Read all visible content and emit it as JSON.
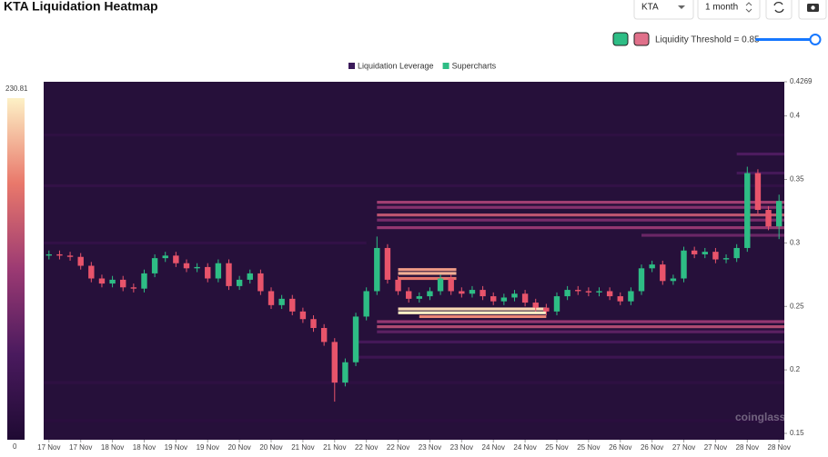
{
  "header": {
    "title": "KTA Liquidation Heatmap",
    "symbol": "KTA",
    "interval": "1 month",
    "threshold_label": "Liquidity Threshold = 0.85"
  },
  "chart_data": {
    "type": "candlestick",
    "legend": [
      "Liquidation Leverage",
      "Supercharts"
    ],
    "legend_colors": [
      "#3b1a5a",
      "#2ebd85"
    ],
    "watermark": "coinglass",
    "up_color": "#2ebd85",
    "down_color": "#e8546b",
    "xlim": [
      -0.5,
      69.5
    ],
    "xticks": [
      {
        "value": 0,
        "label": "17 Nov"
      },
      {
        "value": 3,
        "label": "17 Nov"
      },
      {
        "value": 6,
        "label": "18 Nov"
      },
      {
        "value": 9,
        "label": "18 Nov"
      },
      {
        "value": 12,
        "label": "19 Nov"
      },
      {
        "value": 15,
        "label": "19 Nov"
      },
      {
        "value": 18,
        "label": "20 Nov"
      },
      {
        "value": 21,
        "label": "20 Nov"
      },
      {
        "value": 24,
        "label": "21 Nov"
      },
      {
        "value": 27,
        "label": "21 Nov"
      },
      {
        "value": 30,
        "label": "22 Nov"
      },
      {
        "value": 33,
        "label": "22 Nov"
      },
      {
        "value": 36,
        "label": "23 Nov"
      },
      {
        "value": 39,
        "label": "23 Nov"
      },
      {
        "value": 42,
        "label": "24 Nov"
      },
      {
        "value": 45,
        "label": "24 Nov"
      },
      {
        "value": 48,
        "label": "25 Nov"
      },
      {
        "value": 51,
        "label": "25 Nov"
      },
      {
        "value": 54,
        "label": "26 Nov"
      },
      {
        "value": 57,
        "label": "26 Nov"
      },
      {
        "value": 60,
        "label": "27 Nov"
      },
      {
        "value": 63,
        "label": "27 Nov"
      },
      {
        "value": 66,
        "label": "28 Nov"
      },
      {
        "value": 69,
        "label": "28 Nov"
      }
    ],
    "ylim": [
      0.145,
      0.4269
    ],
    "yticks": [
      0.4269,
      0.4,
      0.35,
      0.3,
      0.25,
      0.2,
      0.15
    ],
    "colorbar": {
      "range": [
        0,
        230.81
      ]
    },
    "x": [
      0,
      1,
      2,
      3,
      4,
      5,
      6,
      7,
      8,
      9,
      10,
      11,
      12,
      13,
      14,
      15,
      16,
      17,
      18,
      19,
      20,
      21,
      22,
      23,
      24,
      25,
      26,
      27,
      28,
      29,
      30,
      31,
      32,
      33,
      34,
      35,
      36,
      37,
      38,
      39,
      40,
      41,
      42,
      43,
      44,
      45,
      46,
      47,
      48,
      49,
      50,
      51,
      52,
      53,
      54,
      55,
      56,
      57,
      58,
      59,
      60,
      61,
      62,
      63,
      64,
      65,
      66,
      67,
      68,
      69
    ],
    "open": [
      0.29,
      0.291,
      0.29,
      0.289,
      0.282,
      0.272,
      0.268,
      0.271,
      0.265,
      0.264,
      0.276,
      0.288,
      0.29,
      0.284,
      0.28,
      0.281,
      0.272,
      0.284,
      0.266,
      0.271,
      0.276,
      0.262,
      0.251,
      0.256,
      0.246,
      0.24,
      0.233,
      0.222,
      0.19,
      0.206,
      0.242,
      0.262,
      0.296,
      0.271,
      0.262,
      0.256,
      0.258,
      0.262,
      0.272,
      0.262,
      0.26,
      0.263,
      0.258,
      0.254,
      0.257,
      0.26,
      0.253,
      0.249,
      0.246,
      0.258,
      0.263,
      0.262,
      0.261,
      0.262,
      0.258,
      0.254,
      0.262,
      0.28,
      0.283,
      0.27,
      0.272,
      0.294,
      0.291,
      0.293,
      0.287,
      0.288,
      0.296,
      0.355,
      0.326,
      0.313
    ],
    "high": [
      0.294,
      0.294,
      0.293,
      0.292,
      0.285,
      0.275,
      0.274,
      0.274,
      0.268,
      0.279,
      0.291,
      0.293,
      0.293,
      0.287,
      0.284,
      0.284,
      0.287,
      0.287,
      0.274,
      0.279,
      0.279,
      0.265,
      0.259,
      0.259,
      0.249,
      0.243,
      0.236,
      0.225,
      0.209,
      0.245,
      0.265,
      0.305,
      0.299,
      0.274,
      0.265,
      0.261,
      0.265,
      0.275,
      0.275,
      0.265,
      0.266,
      0.266,
      0.261,
      0.26,
      0.263,
      0.263,
      0.256,
      0.252,
      0.261,
      0.266,
      0.266,
      0.265,
      0.265,
      0.265,
      0.261,
      0.265,
      0.283,
      0.286,
      0.286,
      0.275,
      0.297,
      0.297,
      0.296,
      0.296,
      0.291,
      0.299,
      0.36,
      0.358,
      0.329,
      0.338
    ],
    "low": [
      0.287,
      0.287,
      0.286,
      0.279,
      0.269,
      0.265,
      0.265,
      0.262,
      0.261,
      0.261,
      0.273,
      0.285,
      0.281,
      0.277,
      0.277,
      0.269,
      0.269,
      0.263,
      0.263,
      0.268,
      0.259,
      0.248,
      0.248,
      0.243,
      0.237,
      0.23,
      0.219,
      0.175,
      0.187,
      0.203,
      0.239,
      0.259,
      0.268,
      0.259,
      0.253,
      0.253,
      0.255,
      0.259,
      0.259,
      0.257,
      0.257,
      0.255,
      0.251,
      0.251,
      0.254,
      0.25,
      0.246,
      0.243,
      0.243,
      0.255,
      0.259,
      0.258,
      0.258,
      0.255,
      0.251,
      0.251,
      0.259,
      0.277,
      0.267,
      0.267,
      0.269,
      0.288,
      0.288,
      0.284,
      0.284,
      0.285,
      0.293,
      0.323,
      0.31,
      0.303
    ],
    "close": [
      0.291,
      0.29,
      0.289,
      0.282,
      0.272,
      0.268,
      0.271,
      0.265,
      0.264,
      0.276,
      0.288,
      0.29,
      0.284,
      0.28,
      0.281,
      0.272,
      0.284,
      0.266,
      0.271,
      0.276,
      0.262,
      0.251,
      0.256,
      0.246,
      0.24,
      0.233,
      0.222,
      0.19,
      0.206,
      0.242,
      0.262,
      0.296,
      0.271,
      0.262,
      0.256,
      0.258,
      0.262,
      0.272,
      0.262,
      0.26,
      0.263,
      0.258,
      0.254,
      0.257,
      0.26,
      0.253,
      0.249,
      0.246,
      0.258,
      0.263,
      0.262,
      0.261,
      0.262,
      0.258,
      0.254,
      0.262,
      0.28,
      0.283,
      0.27,
      0.272,
      0.294,
      0.291,
      0.293,
      0.287,
      0.288,
      0.296,
      0.355,
      0.326,
      0.313,
      0.333
    ],
    "heatmap": [
      {
        "price": 0.385,
        "start": -0.5,
        "end": 69.5,
        "value": 20
      },
      {
        "price": 0.37,
        "start": 65,
        "end": 69.5,
        "value": 60
      },
      {
        "price": 0.355,
        "start": 65,
        "end": 69.5,
        "value": 50
      },
      {
        "price": 0.345,
        "start": -0.5,
        "end": 69.5,
        "value": 25
      },
      {
        "price": 0.332,
        "start": 31,
        "end": 69.5,
        "value": 120
      },
      {
        "price": 0.328,
        "start": 31,
        "end": 69.5,
        "value": 100
      },
      {
        "price": 0.322,
        "start": 31,
        "end": 69.5,
        "value": 140
      },
      {
        "price": 0.318,
        "start": 31,
        "end": 69.5,
        "value": 90
      },
      {
        "price": 0.312,
        "start": 31,
        "end": 69.5,
        "value": 110
      },
      {
        "price": 0.306,
        "start": 56,
        "end": 69.5,
        "value": 80
      },
      {
        "price": 0.3,
        "start": -0.5,
        "end": 30,
        "value": 25
      },
      {
        "price": 0.279,
        "start": 33,
        "end": 38.5,
        "value": 190
      },
      {
        "price": 0.276,
        "start": 33,
        "end": 38.5,
        "value": 200
      },
      {
        "price": 0.272,
        "start": 33,
        "end": 38.5,
        "value": 170
      },
      {
        "price": 0.248,
        "start": 33,
        "end": 47,
        "value": 220
      },
      {
        "price": 0.245,
        "start": 33,
        "end": 47,
        "value": 230
      },
      {
        "price": 0.242,
        "start": 35,
        "end": 47,
        "value": 180
      },
      {
        "price": 0.238,
        "start": 31,
        "end": 69.5,
        "value": 110
      },
      {
        "price": 0.234,
        "start": 31,
        "end": 69.5,
        "value": 130
      },
      {
        "price": 0.23,
        "start": 31,
        "end": 69.5,
        "value": 70
      },
      {
        "price": 0.222,
        "start": 29,
        "end": 69.5,
        "value": 50
      },
      {
        "price": 0.21,
        "start": 29,
        "end": 69.5,
        "value": 40
      },
      {
        "price": 0.19,
        "start": -0.5,
        "end": 69.5,
        "value": 20
      },
      {
        "price": 0.16,
        "start": -0.5,
        "end": 69.5,
        "value": 15
      }
    ]
  }
}
